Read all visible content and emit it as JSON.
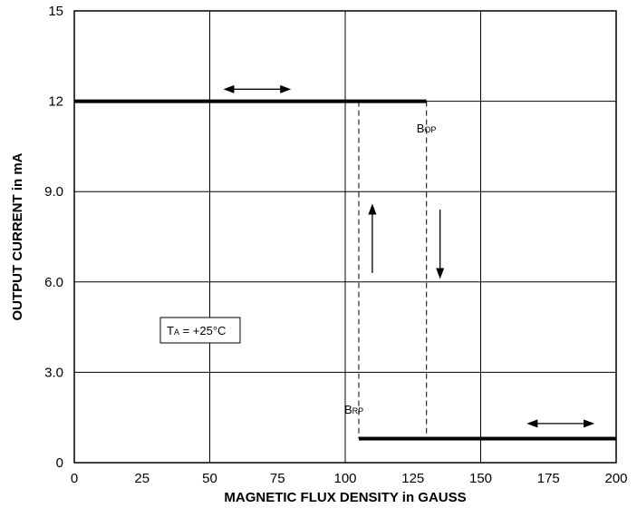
{
  "chart_data": {
    "type": "line",
    "xlabel": "MAGNETIC FLUX DENSITY in GAUSS",
    "ylabel": "OUTPUT CURRENT in mA",
    "xlim": [
      0,
      200
    ],
    "ylim": [
      0,
      15
    ],
    "x_ticks": [
      "0",
      "25",
      "50",
      "75",
      "100",
      "125",
      "150",
      "175",
      "200"
    ],
    "x_tick_values": [
      0,
      25,
      50,
      75,
      100,
      125,
      150,
      175,
      200
    ],
    "y_ticks": [
      "0",
      "3.0",
      "6.0",
      "9.0",
      "12",
      "15"
    ],
    "y_tick_values": [
      0,
      3,
      6,
      9,
      12,
      15
    ],
    "grid": true,
    "series": [
      {
        "values_x": [
          0,
          130,
          130,
          200
        ],
        "values_y": [
          12,
          12,
          0.8,
          0.8
        ]
      },
      {
        "values_x": [
          0,
          105,
          105,
          200
        ],
        "values_y": [
          12,
          12,
          0.8,
          0.8
        ]
      }
    ],
    "annotations": {
      "bop": {
        "main": "B",
        "sub": "OP",
        "x": 130
      },
      "brp": {
        "main": "B",
        "sub": "RP",
        "x": 105
      },
      "ta": {
        "main": "T",
        "sub": "A",
        "rest": " = +25°C"
      }
    },
    "arrows": [
      {
        "kind": "double-horizontal",
        "x1": 55,
        "x2": 80,
        "y": 12.4
      },
      {
        "kind": "double-horizontal",
        "x1": 167,
        "x2": 192,
        "y": 1.3
      },
      {
        "kind": "up",
        "x": 110,
        "y1": 6.3,
        "y2": 8.6
      },
      {
        "kind": "down",
        "x": 135,
        "y1": 8.4,
        "y2": 6.1
      }
    ]
  }
}
